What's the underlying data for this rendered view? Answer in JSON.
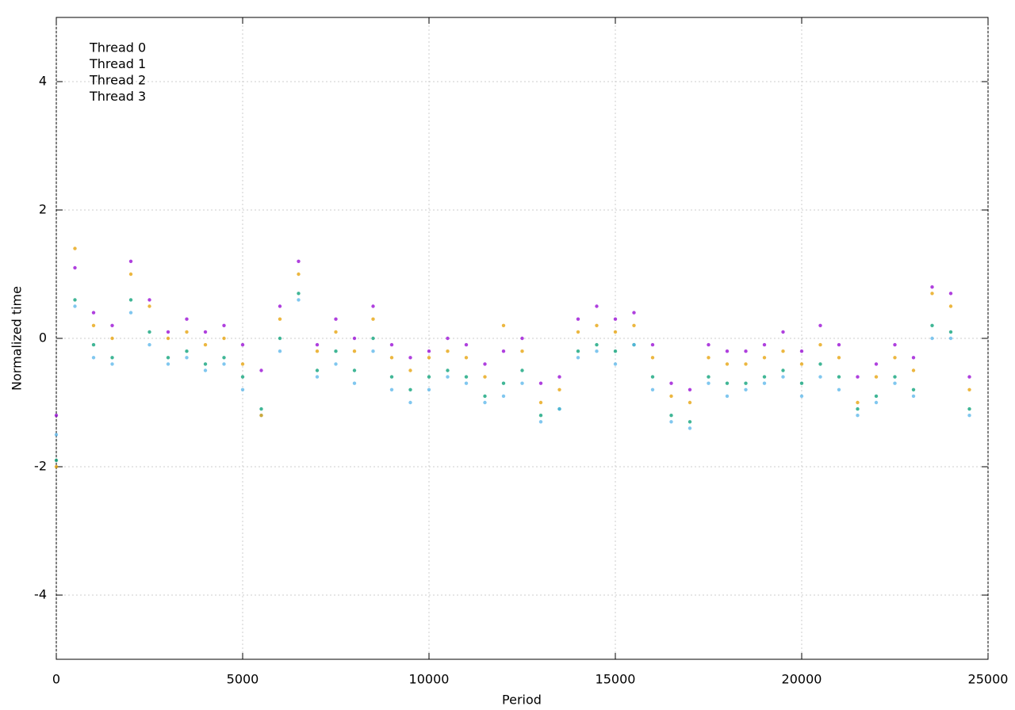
{
  "chart_data": {
    "type": "scatter",
    "x_label": "Period",
    "y_label": "Normalized time",
    "xlim": [
      0,
      25000
    ],
    "xticks": [
      0,
      5000,
      10000,
      15000,
      20000,
      25000
    ],
    "ylim": [
      -5,
      5
    ],
    "yticks": [
      -4,
      -2,
      0,
      2,
      4
    ],
    "grid": true,
    "legend": "top-left",
    "x": [
      0,
      500,
      1000,
      1500,
      2000,
      2500,
      3000,
      3500,
      4000,
      4500,
      5000,
      5500,
      6000,
      6500,
      7000,
      7500,
      8000,
      8500,
      9000,
      9500,
      10000,
      10500,
      11000,
      11500,
      12000,
      12500,
      13000,
      13500,
      14000,
      14500,
      15000,
      15500,
      16000,
      16500,
      17000,
      17500,
      18000,
      18500,
      19000,
      19500,
      20000,
      20500,
      21000,
      21500,
      22000,
      22500,
      23000,
      23500,
      24000,
      24500
    ],
    "series": [
      {
        "name": "Thread 0",
        "color": "#9400d3",
        "values": [
          -1.2,
          1.1,
          0.4,
          0.2,
          1.2,
          0.6,
          0.1,
          0.3,
          0.1,
          0.2,
          -0.1,
          -0.5,
          0.5,
          1.2,
          -0.1,
          0.3,
          0,
          0.5,
          -0.1,
          -0.3,
          -0.2,
          0,
          -0.1,
          -0.4,
          -0.2,
          0,
          -0.7,
          -0.6,
          0.3,
          0.5,
          0.3,
          0.4,
          -0.1,
          -0.7,
          -0.8,
          -0.1,
          -0.2,
          -0.2,
          -0.1,
          0.1,
          -0.2,
          0.2,
          -0.1,
          -0.6,
          -0.4,
          -0.1,
          -0.3,
          0.8,
          0.7,
          -0.6
        ]
      },
      {
        "name": "Thread 1",
        "color": "#009e73",
        "values": [
          -1.9,
          0.6,
          -0.1,
          -0.3,
          0.6,
          0.1,
          -0.3,
          -0.2,
          -0.4,
          -0.3,
          -0.6,
          -1.1,
          0,
          0.7,
          -0.5,
          -0.2,
          -0.5,
          0,
          -0.6,
          -0.8,
          -0.6,
          -0.5,
          -0.6,
          -0.9,
          -0.7,
          -0.5,
          -1.2,
          -1.1,
          -0.2,
          -0.1,
          -0.2,
          -0.1,
          -0.6,
          -1.2,
          -1.3,
          -0.6,
          -0.7,
          -0.7,
          -0.6,
          -0.5,
          -0.7,
          -0.4,
          -0.6,
          -1.1,
          -0.9,
          -0.6,
          -0.8,
          0.2,
          0.1,
          -1.1
        ]
      },
      {
        "name": "Thread 2",
        "color": "#56b4e9",
        "values": [
          -1.5,
          0.5,
          -0.3,
          -0.4,
          0.4,
          -0.1,
          -0.4,
          -0.3,
          -0.5,
          -0.4,
          -0.8,
          -1.2,
          -0.2,
          0.6,
          -0.6,
          -0.4,
          -0.7,
          -0.2,
          -0.8,
          -1.0,
          -0.8,
          -0.6,
          -0.7,
          -1.0,
          -0.9,
          -0.7,
          -1.3,
          -1.1,
          -0.3,
          -0.2,
          -0.4,
          -0.1,
          -0.8,
          -1.3,
          -1.4,
          -0.7,
          -0.9,
          -0.8,
          -0.7,
          -0.6,
          -0.9,
          -0.6,
          -0.8,
          -1.2,
          -1.0,
          -0.7,
          -0.9,
          0,
          0,
          -1.2
        ]
      },
      {
        "name": "Thread 3",
        "color": "#e69f00",
        "values": [
          -2.0,
          1.4,
          0.2,
          0,
          1.0,
          0.5,
          0,
          0.1,
          -0.1,
          0,
          -0.4,
          -1.2,
          0.3,
          1.0,
          -0.2,
          0.1,
          -0.2,
          0.3,
          -0.3,
          -0.5,
          -0.3,
          -0.2,
          -0.3,
          -0.6,
          0.2,
          -0.2,
          -1.0,
          -0.8,
          0.1,
          0.2,
          0.1,
          0.2,
          -0.3,
          -0.9,
          -1.0,
          -0.3,
          -0.4,
          -0.4,
          -0.3,
          -0.2,
          -0.4,
          -0.1,
          -0.3,
          -1.0,
          -0.6,
          -0.3,
          -0.5,
          0.7,
          0.5,
          -0.8
        ]
      }
    ]
  }
}
